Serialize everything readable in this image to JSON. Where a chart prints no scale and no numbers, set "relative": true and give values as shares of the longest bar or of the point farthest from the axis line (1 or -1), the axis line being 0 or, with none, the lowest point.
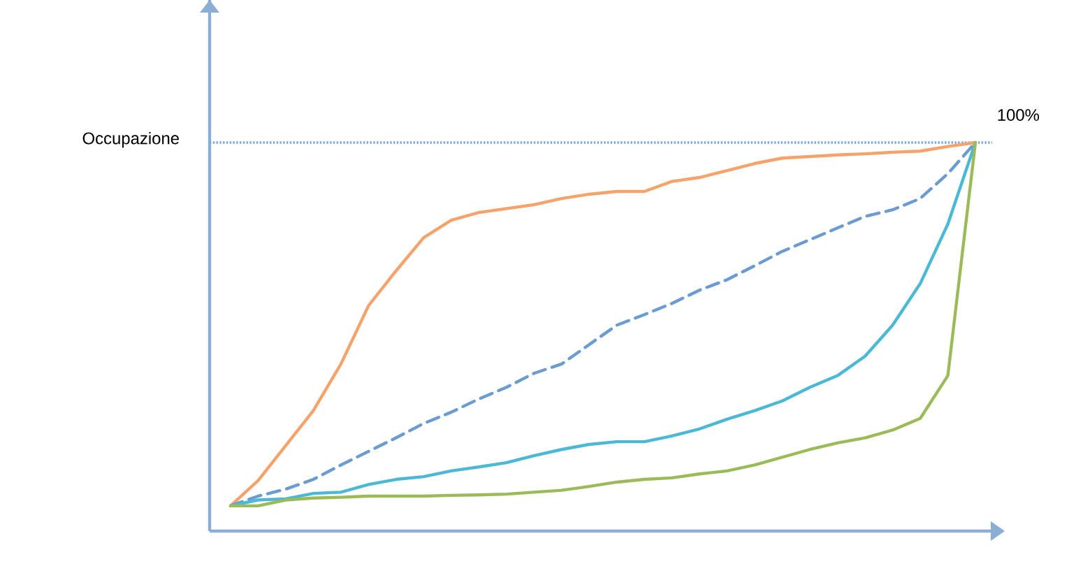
{
  "chart_data": {
    "type": "line",
    "ylabel": "Occupazione",
    "relative": true,
    "categories": [
      null,
      null,
      null,
      null,
      null,
      null,
      null,
      null,
      null,
      null,
      null,
      null,
      null,
      null,
      null,
      null,
      null,
      null,
      null,
      null,
      null,
      null,
      null,
      null,
      null,
      null,
      null,
      null
    ],
    "series": [
      {
        "color": "#f5a36a",
        "values": [
          0.065,
          0.13,
          0.22,
          0.31,
          0.43,
          0.58,
          0.67,
          0.755,
          0.8,
          0.82,
          0.83,
          0.84,
          0.856,
          0.867,
          0.874,
          0.874,
          0.9,
          0.91,
          0.928,
          0.946,
          0.96,
          0.964,
          0.968,
          0.971,
          0.975,
          0.978,
          0.99,
          1.0
        ]
      },
      {
        "color": "#6a9bd1",
        "line_style": "dashed",
        "values": [
          0.065,
          0.09,
          0.108,
          0.133,
          0.17,
          0.205,
          0.24,
          0.277,
          0.306,
          0.34,
          0.37,
          0.406,
          0.43,
          0.48,
          0.53,
          0.557,
          0.586,
          0.62,
          0.647,
          0.683,
          0.72,
          0.75,
          0.78,
          0.81,
          0.827,
          0.856,
          0.92,
          1.0
        ]
      },
      {
        "color": "#4bb8d6",
        "values": [
          0.065,
          0.08,
          0.083,
          0.097,
          0.1,
          0.12,
          0.133,
          0.14,
          0.155,
          0.165,
          0.176,
          0.194,
          0.21,
          0.223,
          0.23,
          0.23,
          0.245,
          0.263,
          0.288,
          0.31,
          0.335,
          0.37,
          0.4,
          0.45,
          0.53,
          0.637,
          0.79,
          1.0
        ]
      },
      {
        "color": "#9bbb59",
        "values": [
          0.065,
          0.065,
          0.08,
          0.085,
          0.087,
          0.09,
          0.09,
          0.09,
          0.092,
          0.093,
          0.095,
          0.1,
          0.105,
          0.115,
          0.126,
          0.133,
          0.137,
          0.147,
          0.155,
          0.17,
          0.19,
          0.21,
          0.227,
          0.24,
          0.26,
          0.29,
          0.4,
          1.0
        ]
      }
    ],
    "ref_lines": [
      {
        "axis": "y",
        "value": 1,
        "label": "100%",
        "color": "#7aa8d8",
        "line_style": "dotted"
      }
    ],
    "line_style": "solid",
    "marker": "none",
    "grid": false
  }
}
